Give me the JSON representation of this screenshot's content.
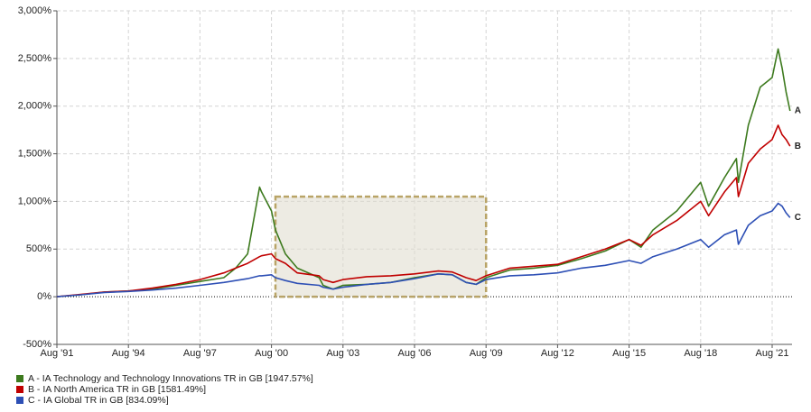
{
  "chart_data": {
    "type": "line",
    "x": [
      "1991-08",
      "1992-08",
      "1993-08",
      "1994-08",
      "1995-08",
      "1996-08",
      "1997-08",
      "1998-08",
      "1999-02",
      "1999-08",
      "2000-02",
      "2000-03",
      "2000-08",
      "2000-10",
      "2001-03",
      "2001-09",
      "2002-08",
      "2002-10",
      "2003-03",
      "2003-08",
      "2004-08",
      "2005-08",
      "2006-08",
      "2007-08",
      "2008-03",
      "2008-10",
      "2009-03",
      "2009-08",
      "2010-08",
      "2011-08",
      "2012-08",
      "2013-08",
      "2014-08",
      "2015-08",
      "2016-02",
      "2016-08",
      "2017-08",
      "2018-08",
      "2018-12",
      "2019-08",
      "2020-02",
      "2020-03",
      "2020-08",
      "2021-02",
      "2021-08",
      "2021-11",
      "2022-01",
      "2022-03",
      "2022-05"
    ],
    "series": [
      {
        "name": "A - IA Technology and Technology Innovations TR in GB [1947.57%]",
        "end_label": "A",
        "color": "#3d7a1e",
        "values": [
          0,
          20,
          50,
          60,
          80,
          120,
          160,
          200,
          300,
          450,
          1150,
          1100,
          900,
          700,
          450,
          300,
          200,
          120,
          80,
          120,
          130,
          150,
          200,
          240,
          230,
          150,
          130,
          200,
          280,
          300,
          330,
          400,
          480,
          600,
          520,
          700,
          900,
          1200,
          950,
          1250,
          1450,
          1200,
          1800,
          2200,
          2300,
          2600,
          2400,
          2150,
          1950
        ]
      },
      {
        "name": "B - IA North America TR in GB [1581.49%]",
        "end_label": "B",
        "color": "#c00000",
        "values": [
          0,
          25,
          50,
          60,
          90,
          130,
          180,
          250,
          300,
          350,
          420,
          430,
          450,
          400,
          350,
          250,
          220,
          180,
          150,
          180,
          210,
          220,
          240,
          270,
          260,
          200,
          170,
          220,
          300,
          320,
          340,
          420,
          500,
          600,
          540,
          650,
          800,
          1000,
          850,
          1100,
          1250,
          1050,
          1400,
          1550,
          1650,
          1800,
          1700,
          1650,
          1580
        ]
      },
      {
        "name": "C - IA Global TR in GB [834.09%]",
        "end_label": "C",
        "color": "#2d4fb5",
        "values": [
          0,
          20,
          45,
          55,
          70,
          90,
          120,
          150,
          170,
          190,
          220,
          220,
          230,
          200,
          170,
          140,
          120,
          100,
          80,
          100,
          130,
          150,
          190,
          240,
          230,
          150,
          130,
          180,
          220,
          230,
          250,
          300,
          330,
          380,
          350,
          420,
          500,
          600,
          520,
          650,
          700,
          550,
          750,
          850,
          900,
          980,
          950,
          880,
          830
        ]
      }
    ],
    "xlim": [
      "1991-08",
      "2022-06"
    ],
    "xticks": [
      {
        "value": "1991-08",
        "label": "Aug '91"
      },
      {
        "value": "1994-08",
        "label": "Aug '94"
      },
      {
        "value": "1997-08",
        "label": "Aug '97"
      },
      {
        "value": "2000-08",
        "label": "Aug '00"
      },
      {
        "value": "2003-08",
        "label": "Aug '03"
      },
      {
        "value": "2006-08",
        "label": "Aug '06"
      },
      {
        "value": "2009-08",
        "label": "Aug '09"
      },
      {
        "value": "2012-08",
        "label": "Aug '12"
      },
      {
        "value": "2015-08",
        "label": "Aug '15"
      },
      {
        "value": "2018-08",
        "label": "Aug '18"
      },
      {
        "value": "2021-08",
        "label": "Aug '21"
      }
    ],
    "ylim": [
      -500,
      3000
    ],
    "yticks": [
      {
        "value": -500,
        "label": "-500%"
      },
      {
        "value": 0,
        "label": "0%"
      },
      {
        "value": 500,
        "label": "500%"
      },
      {
        "value": 1000,
        "label": "1,000%"
      },
      {
        "value": 1500,
        "label": "1,500%"
      },
      {
        "value": 2000,
        "label": "2,000%"
      },
      {
        "value": 2500,
        "label": "2,500%"
      },
      {
        "value": 3000,
        "label": "3,000%"
      }
    ],
    "grid": true,
    "highlight": {
      "xrange": [
        "2000-10",
        "2009-08"
      ],
      "yrange": [
        0,
        1050
      ]
    }
  }
}
